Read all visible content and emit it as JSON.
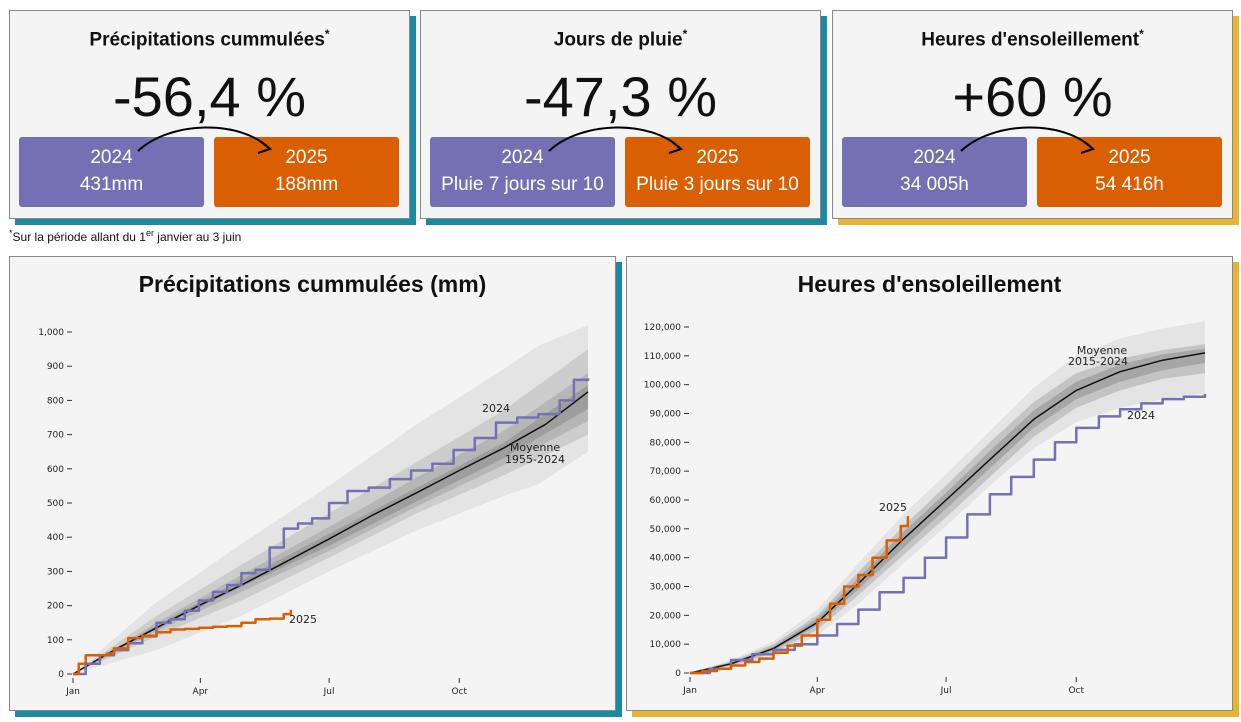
{
  "kpis": [
    {
      "title": "Précipitations cummulées",
      "star": "*",
      "value": "-56,4 %",
      "year_a": "2024",
      "val_a": "431mm",
      "year_b": "2025",
      "val_b": "188mm"
    },
    {
      "title": "Jours de pluie",
      "star": "*",
      "value": "-47,3 %",
      "year_a": "2024",
      "val_a": "Pluie 7 jours sur 10",
      "year_b": "2025",
      "val_b": "Pluie 3 jours sur 10"
    },
    {
      "title": "Heures d'ensoleillement",
      "star": "*",
      "value": "+60 %",
      "year_a": "2024",
      "val_a": "34 005h",
      "year_b": "2025",
      "val_b": "54 416h"
    }
  ],
  "footnote": {
    "star": "*",
    "pre": "Sur la période allant du 1",
    "sup": "er",
    "post": " janvier au 3 juin"
  },
  "colors": {
    "purple": "#7570b3",
    "orange": "#d95f02",
    "teal": "#1a8aa0",
    "gold": "#e8b233",
    "mean": "#111111"
  },
  "chart_data": [
    {
      "type": "line",
      "title": "Précipitations cummulées (mm)",
      "xlabel": "",
      "ylabel": "",
      "x_ticks": [
        {
          "day": 1,
          "label": "Jan"
        },
        {
          "day": 91,
          "label": "Apr"
        },
        {
          "day": 182,
          "label": "Jul"
        },
        {
          "day": 274,
          "label": "Oct"
        }
      ],
      "xlim": [
        1,
        365
      ],
      "ylim": [
        0,
        1000
      ],
      "y_ticks": [
        0,
        100,
        200,
        300,
        400,
        500,
        600,
        700,
        800,
        900,
        1000
      ],
      "y_tick_labels": [
        "0",
        "100",
        "200",
        "300",
        "400",
        "500",
        "600",
        "700",
        "800",
        "900",
        "1,000"
      ],
      "grid": false,
      "bands": [
        {
          "name": "",
          "x": [
            1,
            60,
            120,
            182,
            244,
            305,
            330,
            365
          ],
          "low": [
            0,
            70,
            170,
            300,
            420,
            520,
            555,
            650
          ],
          "high": [
            0,
            210,
            380,
            550,
            730,
            890,
            960,
            1020
          ],
          "color": "#e4e4e4"
        },
        {
          "name": "",
          "x": [
            1,
            60,
            120,
            182,
            244,
            305,
            365
          ],
          "low": [
            0,
            110,
            215,
            340,
            470,
            580,
            700
          ],
          "high": [
            0,
            170,
            320,
            470,
            620,
            770,
            950
          ],
          "color": "#cdcdcd"
        },
        {
          "name": "",
          "x": [
            1,
            60,
            120,
            182,
            244,
            305,
            365
          ],
          "low": [
            0,
            125,
            240,
            360,
            490,
            610,
            740
          ],
          "high": [
            0,
            150,
            290,
            430,
            575,
            710,
            880
          ],
          "color": "#b6b6b6"
        },
        {
          "name": "",
          "x": [
            1,
            60,
            120,
            182,
            244,
            305,
            365
          ],
          "low": [
            0,
            132,
            255,
            375,
            505,
            630,
            775
          ],
          "high": [
            0,
            142,
            275,
            410,
            545,
            675,
            845
          ],
          "color": "#9e9e9e"
        }
      ],
      "series": [
        {
          "name": "Moyenne 1955-2024",
          "color": "#111111",
          "x": [
            1,
            30,
            60,
            90,
            120,
            150,
            182,
            213,
            244,
            274,
            305,
            335,
            365
          ],
          "y": [
            0,
            70,
            135,
            200,
            260,
            325,
            395,
            465,
            530,
            595,
            660,
            730,
            825
          ]
        },
        {
          "name": "2024",
          "color": "#7570b3",
          "x": [
            1,
            10,
            20,
            30,
            40,
            50,
            60,
            70,
            80,
            90,
            100,
            110,
            120,
            130,
            140,
            150,
            160,
            170,
            182,
            195,
            210,
            225,
            240,
            255,
            270,
            285,
            300,
            315,
            330,
            345,
            355,
            365
          ],
          "y": [
            0,
            30,
            55,
            70,
            90,
            110,
            150,
            160,
            185,
            215,
            240,
            260,
            295,
            305,
            370,
            425,
            440,
            455,
            500,
            535,
            545,
            570,
            595,
            615,
            655,
            690,
            735,
            750,
            760,
            800,
            860,
            865
          ]
        },
        {
          "name": "2025",
          "color": "#d95f02",
          "x": [
            1,
            5,
            10,
            25,
            30,
            40,
            50,
            60,
            70,
            80,
            90,
            100,
            110,
            120,
            130,
            140,
            150,
            155
          ],
          "y": [
            0,
            30,
            55,
            60,
            75,
            105,
            112,
            122,
            130,
            132,
            135,
            138,
            140,
            150,
            160,
            162,
            175,
            188
          ]
        }
      ],
      "labels": [
        {
          "text": "2024",
          "series": "2024"
        },
        {
          "text": "Moyenne",
          "series": "Moyenne 1955-2024"
        },
        {
          "text": "1955-2024",
          "series": "Moyenne 1955-2024"
        },
        {
          "text": "2025",
          "series": "2025"
        }
      ]
    },
    {
      "type": "line",
      "title": "Heures d'ensoleillement",
      "xlabel": "",
      "ylabel": "",
      "x_ticks": [
        {
          "day": 1,
          "label": "Jan"
        },
        {
          "day": 91,
          "label": "Apr"
        },
        {
          "day": 182,
          "label": "Jul"
        },
        {
          "day": 274,
          "label": "Oct"
        }
      ],
      "xlim": [
        1,
        365
      ],
      "ylim": [
        0,
        120000
      ],
      "y_ticks": [
        0,
        10000,
        20000,
        30000,
        40000,
        50000,
        60000,
        70000,
        80000,
        90000,
        100000,
        110000,
        120000
      ],
      "y_tick_labels": [
        "0",
        "10,000",
        "20,000",
        "30,000",
        "40,000",
        "50,000",
        "60,000",
        "70,000",
        "80,000",
        "90,000",
        "100,000",
        "110,000",
        "120,000"
      ],
      "grid": false,
      "bands": [
        {
          "name": "",
          "x": [
            1,
            30,
            60,
            91,
            120,
            152,
            182,
            213,
            244,
            274,
            305,
            335,
            365
          ],
          "low": [
            0,
            2000,
            6000,
            13000,
            24000,
            38000,
            51000,
            65000,
            78000,
            87000,
            92000,
            95000,
            97000
          ],
          "high": [
            0,
            4500,
            11000,
            22000,
            38000,
            55000,
            69000,
            84000,
            99000,
            110000,
            116000,
            119500,
            122000
          ],
          "color": "#e4e4e4"
        },
        {
          "name": "",
          "x": [
            1,
            30,
            60,
            91,
            120,
            152,
            182,
            213,
            244,
            274,
            305,
            335,
            365
          ],
          "low": [
            0,
            2400,
            7000,
            15000,
            27000,
            41000,
            54000,
            68000,
            82000,
            92000,
            98000,
            102000,
            104000
          ],
          "high": [
            0,
            4000,
            10000,
            20000,
            35000,
            51000,
            65000,
            80000,
            94000,
            104000,
            109000,
            112000,
            114000
          ],
          "color": "#c4c4c4"
        },
        {
          "name": "",
          "x": [
            1,
            30,
            60,
            91,
            120,
            152,
            182,
            213,
            244,
            274,
            305,
            335,
            365
          ],
          "low": [
            0,
            2800,
            7800,
            16500,
            29000,
            43500,
            57000,
            71000,
            85000,
            95000,
            101000,
            105000,
            107500
          ],
          "high": [
            0,
            3600,
            9200,
            19000,
            33000,
            49000,
            62500,
            77000,
            91000,
            101000,
            107000,
            110500,
            112500
          ],
          "color": "#a6a6a6"
        }
      ],
      "series": [
        {
          "name": "Moyenne 2015-2024",
          "color": "#111111",
          "x": [
            1,
            30,
            60,
            91,
            120,
            152,
            182,
            213,
            244,
            274,
            305,
            335,
            365
          ],
          "y": [
            0,
            3200,
            8500,
            17500,
            31000,
            46500,
            60000,
            74000,
            88000,
            98000,
            104500,
            108500,
            111000
          ]
        },
        {
          "name": "2024",
          "color": "#7570b3",
          "x": [
            1,
            15,
            30,
            45,
            60,
            75,
            91,
            105,
            120,
            135,
            152,
            167,
            182,
            197,
            213,
            228,
            244,
            259,
            274,
            290,
            305,
            320,
            335,
            350,
            365
          ],
          "y": [
            0,
            1500,
            4500,
            6500,
            8000,
            10000,
            13000,
            17000,
            22000,
            28000,
            33000,
            40000,
            47000,
            55000,
            62000,
            68000,
            74000,
            80000,
            85000,
            89000,
            91500,
            93500,
            95000,
            95800,
            96800
          ]
        },
        {
          "name": "2025",
          "color": "#d95f02",
          "x": [
            1,
            10,
            20,
            30,
            40,
            50,
            60,
            70,
            80,
            91,
            100,
            110,
            120,
            130,
            140,
            150,
            155
          ],
          "y": [
            0,
            700,
            1500,
            2600,
            3800,
            5000,
            7000,
            9500,
            13000,
            18500,
            24000,
            30000,
            34000,
            40000,
            46000,
            51000,
            54416
          ]
        }
      ],
      "labels": [
        {
          "text": "Moyenne",
          "series": "Moyenne 2015-2024"
        },
        {
          "text": "2015-2024",
          "series": "Moyenne 2015-2024"
        },
        {
          "text": "2024",
          "series": "2024"
        },
        {
          "text": "2025",
          "series": "2025"
        }
      ]
    }
  ]
}
